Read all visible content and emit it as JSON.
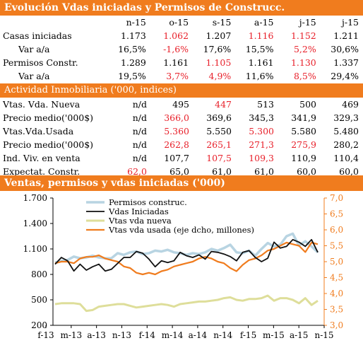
{
  "section1": {
    "title": "Evolución Vdas iniciadas y Permisos de Construcc.",
    "columns": [
      "n-15",
      "o-15",
      "s-15",
      "a-15",
      "j-15",
      "j-15"
    ],
    "rows": [
      {
        "label": "Casas iniciadas",
        "values": [
          "1.173",
          "1.062",
          "1.207",
          "1.116",
          "1.152",
          "1.211"
        ],
        "red": [
          false,
          true,
          false,
          true,
          true,
          false
        ]
      },
      {
        "label": "Var a/a",
        "values": [
          "16,5%",
          "-1,6%",
          "17,6%",
          "15,5%",
          "5,2%",
          "30,6%"
        ],
        "red": [
          false,
          true,
          false,
          false,
          true,
          false
        ]
      },
      {
        "label": "Permisos Constr.",
        "values": [
          "1.289",
          "1.161",
          "1.105",
          "1.161",
          "1.130",
          "1.337"
        ],
        "red": [
          false,
          false,
          true,
          false,
          true,
          false
        ]
      },
      {
        "label": "Var a/a",
        "values": [
          "19,5%",
          "3,7%",
          "4,9%",
          "11,6%",
          "8,5%",
          "29,4%"
        ],
        "red": [
          false,
          true,
          true,
          false,
          true,
          false
        ]
      }
    ]
  },
  "section2": {
    "title": "Actividad Inmobiliaria ('000, indices)",
    "rows": [
      {
        "label": "Vtas. Vda. Nueva",
        "values": [
          "n/d",
          "495",
          "447",
          "513",
          "500",
          "469"
        ],
        "red": [
          false,
          false,
          true,
          false,
          false,
          false
        ]
      },
      {
        "label": "Precio medio('000$)",
        "values": [
          "n/d",
          "366,0",
          "369,6",
          "345,3",
          "341,9",
          "329,3"
        ],
        "red": [
          false,
          true,
          false,
          false,
          false,
          false
        ]
      },
      {
        "label": "Vtas.Vda.Usada",
        "values": [
          "n/d",
          "5.360",
          "5.550",
          "5.300",
          "5.580",
          "5.480"
        ],
        "red": [
          false,
          true,
          false,
          true,
          false,
          false
        ]
      },
      {
        "label": "Precio medio('000$)",
        "values": [
          "n/d",
          "262,8",
          "265,1",
          "271,3",
          "275,9",
          "280,2"
        ],
        "red": [
          false,
          true,
          true,
          true,
          true,
          false
        ]
      },
      {
        "label": "Ind. Viv. en venta",
        "values": [
          "n/d",
          "107,7",
          "107,5",
          "109,3",
          "110,9",
          "110,4"
        ],
        "red": [
          false,
          false,
          true,
          true,
          false,
          false
        ]
      },
      {
        "label": "Expectat. Constr.",
        "values": [
          "62,0",
          "65,0",
          "61,0",
          "61,0",
          "60,0",
          "60,0"
        ],
        "red": [
          true,
          false,
          false,
          false,
          false,
          false
        ]
      }
    ]
  },
  "section3": {
    "title": "Ventas, permisos y vdas iniciadas ('000)"
  },
  "colors": {
    "header": "#f07c1e",
    "red": "#e8202a",
    "permisos": "#b8d4e2",
    "iniciadas": "#111111",
    "nueva": "#dede9a",
    "usada": "#f07c1e"
  },
  "chart_data": {
    "type": "line",
    "x_tick_labels": [
      "f-13",
      "m-13",
      "a-13",
      "n-13",
      "f-14",
      "m-14",
      "a-14",
      "n-14",
      "f-15",
      "m-15",
      "a-15",
      "n-15"
    ],
    "y_left": {
      "ticks": [
        "200",
        "500",
        "800",
        "1.100",
        "1.400",
        "1.700"
      ],
      "lim": [
        200,
        1700
      ]
    },
    "y_right": {
      "ticks": [
        "3,0",
        "3,5",
        "4,0",
        "4,5",
        "5,0",
        "5,5",
        "6,0",
        "6,5",
        "7,0"
      ],
      "lim": [
        3.0,
        7.0
      ]
    },
    "legend": [
      "Permisos construc.",
      "Vdas Iniciadas",
      "Vtas vda nueva",
      "Vtas vda usada (eje dcho, millones)"
    ],
    "series": [
      {
        "name": "Permisos construc.",
        "axis": "left",
        "values": [
          940,
          960,
          970,
          1010,
          990,
          1000,
          1020,
          1000,
          990,
          990,
          1050,
          1030,
          1060,
          1070,
          1040,
          1050,
          1080,
          1070,
          1090,
          1060,
          1050,
          1030,
          1050,
          1040,
          1060,
          1100,
          1080,
          1110,
          1150,
          1060,
          1050,
          1080,
          1020,
          1100,
          1170,
          1130,
          1150,
          1250,
          1280,
          1140,
          1190,
          1130,
          1060
        ]
      },
      {
        "name": "Vdas Iniciadas",
        "axis": "left",
        "values": [
          920,
          1000,
          960,
          840,
          920,
          850,
          890,
          920,
          840,
          860,
          930,
          1000,
          1000,
          1070,
          1050,
          980,
          890,
          960,
          940,
          960,
          1060,
          1020,
          1000,
          1030,
          980,
          1070,
          1060,
          1040,
          1010,
          960,
          1060,
          1080,
          1000,
          950,
          990,
          1180,
          1110,
          1130,
          1210,
          1180,
          1130,
          1210,
          1060
        ]
      },
      {
        "name": "Vtas vda nueva",
        "axis": "left",
        "values": [
          450,
          460,
          460,
          460,
          450,
          370,
          380,
          420,
          430,
          440,
          450,
          450,
          430,
          410,
          420,
          430,
          440,
          450,
          440,
          420,
          450,
          460,
          470,
          480,
          480,
          490,
          500,
          520,
          530,
          500,
          490,
          510,
          510,
          520,
          550,
          490,
          520,
          520,
          500,
          460,
          520,
          440,
          490
        ]
      },
      {
        "name": "Vtas vda usada (eje dcho, millones)",
        "axis": "right",
        "values": [
          4.95,
          5.0,
          5.0,
          4.95,
          5.1,
          5.15,
          5.15,
          5.2,
          5.1,
          5.05,
          5.0,
          4.85,
          4.8,
          4.65,
          4.6,
          4.65,
          4.6,
          4.7,
          4.75,
          4.85,
          4.9,
          4.95,
          5.0,
          5.1,
          5.15,
          5.1,
          5.0,
          4.95,
          4.8,
          4.7,
          4.9,
          5.05,
          5.1,
          5.2,
          5.35,
          5.4,
          5.5,
          5.6,
          5.55,
          5.5,
          5.3,
          5.6,
          5.55
        ]
      }
    ]
  }
}
